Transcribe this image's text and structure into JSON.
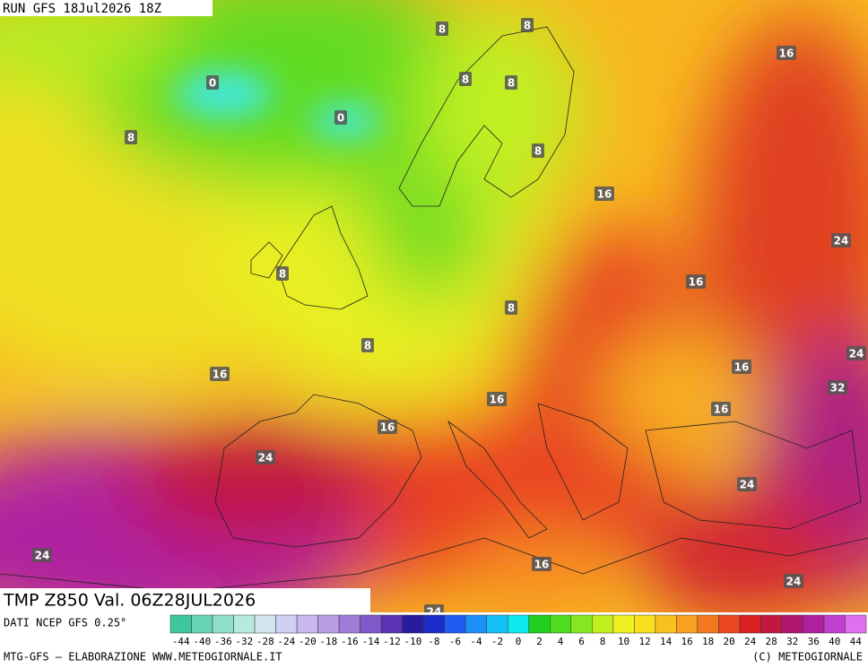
{
  "header": {
    "run": "RUN GFS 18Jul2026 18Z",
    "field": "TMP Z850 Val. 06Z28JUL2026"
  },
  "map": {
    "contour_labels": [
      8,
      8,
      0,
      8,
      8,
      0,
      8,
      8,
      16,
      16,
      24,
      8,
      16,
      8,
      8,
      16,
      16,
      24,
      32,
      16,
      16,
      16,
      24,
      24,
      24,
      16,
      24,
      24
    ]
  },
  "colorbar": {
    "labels": [
      -44,
      -40,
      -36,
      -32,
      -28,
      -24,
      -20,
      -18,
      -16,
      -14,
      -12,
      -10,
      -8,
      -6,
      -4,
      -2,
      0,
      2,
      4,
      6,
      8,
      10,
      12,
      14,
      16,
      18,
      20,
      24,
      28,
      32,
      36,
      40,
      44
    ],
    "colors": [
      "#3cc89c",
      "#66d4b2",
      "#8edfc6",
      "#b6eadc",
      "#d2e6f0",
      "#d0d0f4",
      "#c8b8ee",
      "#b89ce4",
      "#a07cd8",
      "#8058c8",
      "#5a34b4",
      "#2a1aa0",
      "#1c2cc8",
      "#1e5cf0",
      "#1e90f8",
      "#14c0f8",
      "#10e8f0",
      "#20d020",
      "#50dc20",
      "#88e820",
      "#c0f020",
      "#f0f020",
      "#f8e020",
      "#f8c020",
      "#f8a020",
      "#f47820",
      "#ec4820",
      "#d82020",
      "#c01840",
      "#b01870",
      "#b020a0",
      "#c040d0",
      "#e070f0"
    ]
  },
  "footer": {
    "source": "DATI NCEP GFS 0.25°",
    "credit": "MTG-GFS — ELABORAZIONE WWW.METEOGIORNALE.IT",
    "copyright": "(C) METEOGIORNALE"
  }
}
